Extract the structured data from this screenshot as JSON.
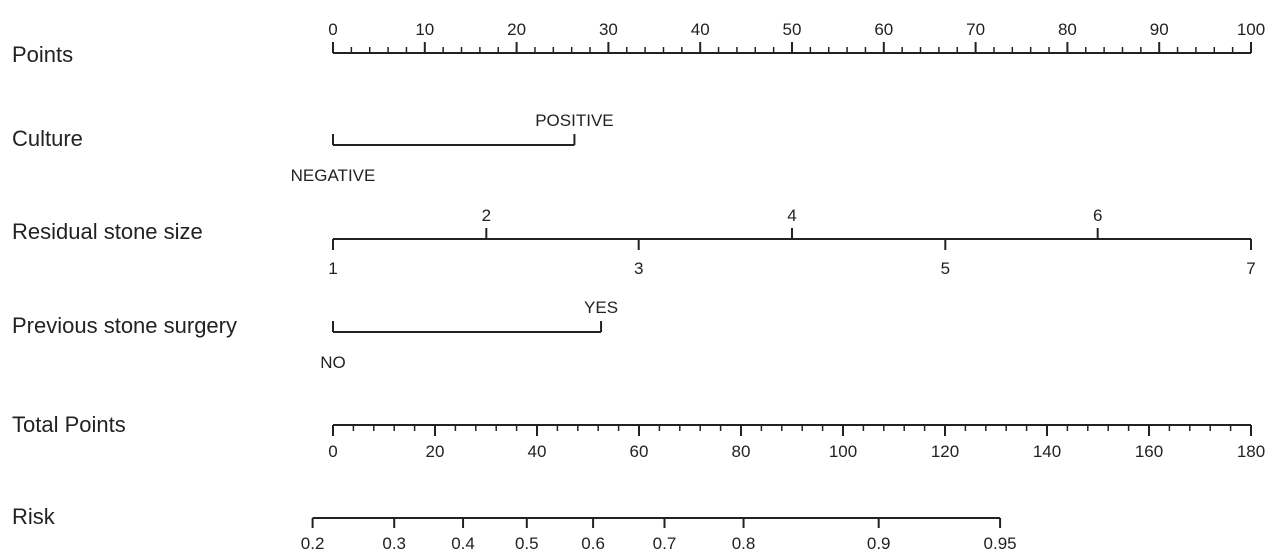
{
  "chart_data": {
    "type": "nomogram",
    "rows": [
      {
        "label": "Points",
        "kind": "scale",
        "min": 0,
        "max": 100,
        "major_ticks": [
          0,
          10,
          20,
          30,
          40,
          50,
          60,
          70,
          80,
          90,
          100
        ],
        "minor_step": 2,
        "tick_labels_side": "above"
      },
      {
        "label": "Culture",
        "kind": "categorical",
        "levels": [
          {
            "name": "NEGATIVE",
            "points": 0
          },
          {
            "name": "POSITIVE",
            "points": 26.3
          }
        ]
      },
      {
        "label": "Residual stone size",
        "kind": "continuous",
        "values": [
          1,
          2,
          3,
          4,
          5,
          6,
          7
        ],
        "points": [
          0,
          16.7,
          33.3,
          50,
          66.7,
          83.3,
          100
        ],
        "labels_above": [
          2,
          4,
          6
        ],
        "labels_below": [
          1,
          3,
          5,
          7
        ]
      },
      {
        "label": "Previous stone surgery",
        "kind": "categorical",
        "levels": [
          {
            "name": "NO",
            "points": 0
          },
          {
            "name": "YES",
            "points": 29.2
          }
        ]
      },
      {
        "label": "Total Points",
        "kind": "scale",
        "min": 0,
        "max": 180,
        "major_ticks": [
          0,
          20,
          40,
          60,
          80,
          100,
          120,
          140,
          160,
          180
        ],
        "minor_step": 4,
        "tick_labels_side": "below"
      },
      {
        "label": "Risk",
        "kind": "probability",
        "values": [
          0.2,
          0.3,
          0.4,
          0.5,
          0.6,
          0.7,
          0.8,
          0.9,
          0.95
        ],
        "tick_labels": [
          "0.2",
          "0.3",
          "0.4",
          "0.5",
          "0.6",
          "0.7",
          "0.8",
          "0.9",
          "0.95"
        ],
        "total_points": [
          -4,
          12,
          25.5,
          38,
          51,
          65,
          80.5,
          107,
          130.8
        ]
      }
    ]
  }
}
